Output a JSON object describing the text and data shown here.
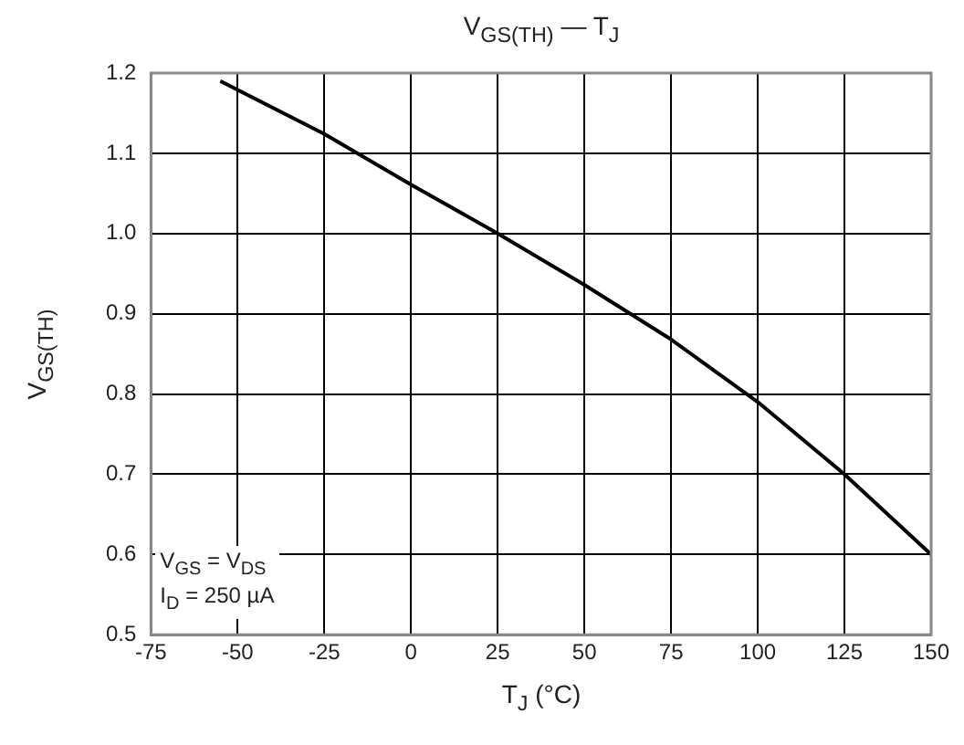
{
  "chart_data": {
    "type": "line",
    "title": "V$_{GS(TH)}$ — T$_{J}$",
    "xlabel": "T$_{J}$ (°C)",
    "ylabel": "V$_{GS(TH)}$",
    "annotations": [
      "V$_{GS}$ = V$_{DS}$",
      "I$_{D}$ = 250 µA"
    ],
    "series": [
      {
        "color": "#000000",
        "x": [
          -55,
          -25,
          0,
          25,
          50,
          75,
          100,
          125,
          150
        ],
        "values": [
          1.19,
          1.124,
          1.061,
          1.0,
          0.936,
          0.868,
          0.79,
          0.7,
          0.6
        ]
      }
    ],
    "xlim": [
      -75,
      150
    ],
    "xticks": [
      -75,
      -50,
      -25,
      0,
      25,
      50,
      75,
      100,
      125,
      150
    ],
    "ylim": [
      0.5,
      1.2
    ],
    "yticks": [
      0.5,
      0.6,
      0.7,
      0.8,
      0.9,
      {
        "value": 1,
        "label": "1.0"
      },
      1.1,
      1.2
    ],
    "grid": true,
    "legend": false,
    "marker": "none",
    "line_style": "solid"
  }
}
